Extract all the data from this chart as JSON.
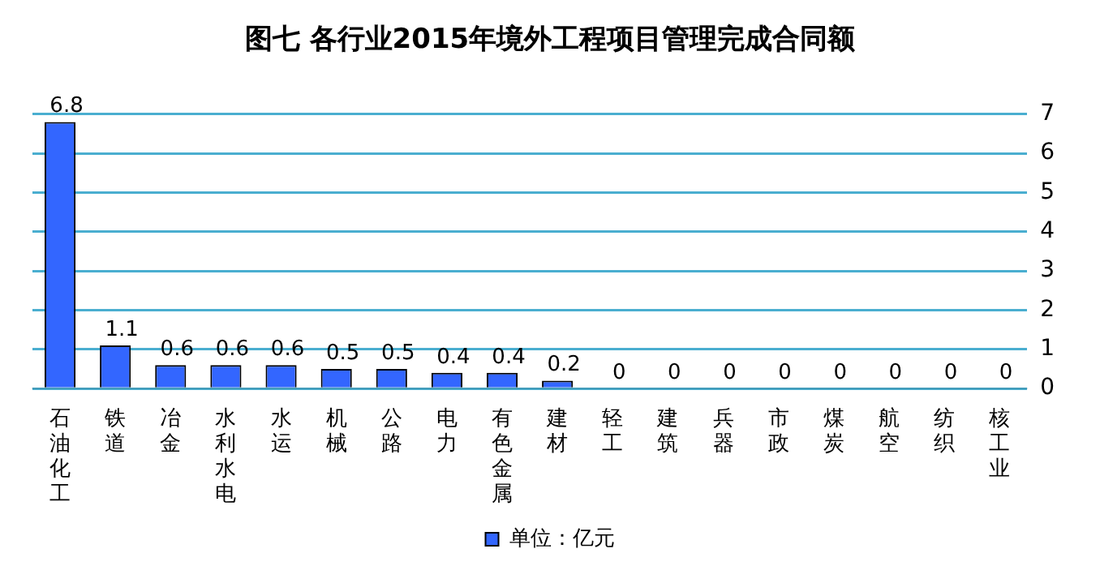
{
  "chart_data": {
    "type": "bar",
    "title": "图七 各行业2015年境外工程项目管理完成合同额",
    "categories": [
      "石油化工",
      "铁道",
      "冶金",
      "水利水电",
      "水运",
      "机械",
      "公路",
      "电力",
      "有色金属",
      "建材",
      "轻工",
      "建筑",
      "兵器",
      "市政",
      "煤炭",
      "航空",
      "纺织",
      "核工业"
    ],
    "series": [
      {
        "name": "单位：亿元",
        "color": "#3366ff",
        "values": [
          6.8,
          1.1,
          0.6,
          0.6,
          0.6,
          0.5,
          0.5,
          0.4,
          0.4,
          0.2,
          0,
          0,
          0,
          0,
          0,
          0,
          0,
          0
        ]
      }
    ],
    "ylim": [
      0,
      7
    ],
    "yticks": [
      0,
      1,
      2,
      3,
      4,
      5,
      6,
      7
    ],
    "grid": "y",
    "legend": "bottom",
    "data_labels": true
  }
}
